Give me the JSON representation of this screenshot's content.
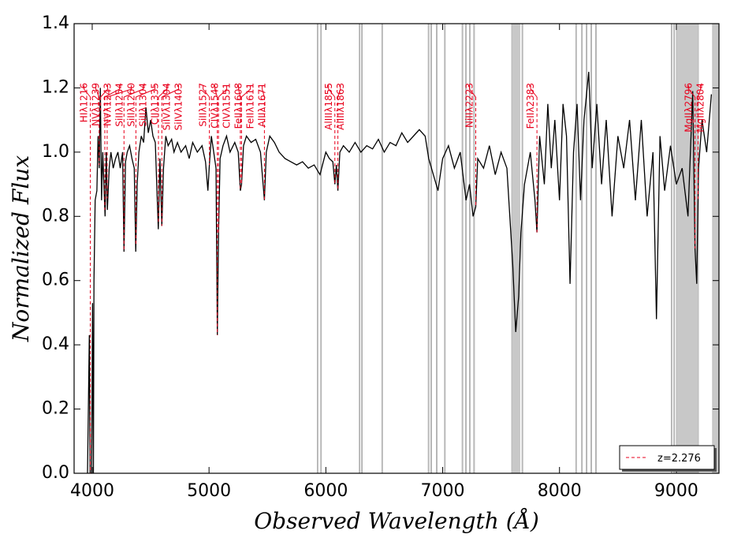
{
  "chart_data": {
    "type": "line",
    "xlabel": "Observed Wavelength (Å)",
    "ylabel": "Normalized Flux",
    "xlim": [
      3845,
      9365
    ],
    "ylim": [
      0,
      1.4
    ],
    "xticks": [
      4000,
      5000,
      6000,
      7000,
      8000,
      9000
    ],
    "yticks": [
      {
        "value": 0,
        "label": "0.0"
      },
      0.2,
      0.4,
      0.6,
      0.8,
      {
        "value": 1,
        "label": "1.0"
      },
      1.2,
      1.4
    ],
    "color": "#000000",
    "line_color": "#e8001c",
    "band_color": "#c8c8c8",
    "legend_label": "z=2.276",
    "legend": "lower right",
    "x": [
      3960,
      3975,
      3982,
      3995,
      4003,
      4010,
      4015,
      4025,
      4040,
      4050,
      4060,
      4070,
      4080,
      4090,
      4100,
      4110,
      4120,
      4130,
      4145,
      4160,
      4180,
      4200,
      4220,
      4240,
      4260,
      4272,
      4285,
      4300,
      4320,
      4340,
      4360,
      4373,
      4385,
      4400,
      4420,
      4440,
      4460,
      4480,
      4500,
      4520,
      4540,
      4566,
      4580,
      4596,
      4610,
      4630,
      4650,
      4680,
      4700,
      4730,
      4760,
      4800,
      4830,
      4860,
      4900,
      4940,
      4970,
      4990,
      5003,
      5020,
      5040,
      5060,
      5071,
      5081,
      5095,
      5120,
      5150,
      5180,
      5220,
      5250,
      5268,
      5278,
      5295,
      5320,
      5360,
      5400,
      5440,
      5474,
      5490,
      5520,
      5560,
      5600,
      5650,
      5700,
      5750,
      5800,
      5850,
      5900,
      5950,
      6000,
      6030,
      6060,
      6077,
      6090,
      6103,
      6120,
      6150,
      6200,
      6250,
      6300,
      6350,
      6400,
      6450,
      6500,
      6550,
      6600,
      6650,
      6700,
      6750,
      6800,
      6850,
      6880,
      6920,
      6960,
      7000,
      7050,
      7100,
      7150,
      7200,
      7230,
      7260,
      7283,
      7300,
      7350,
      7400,
      7450,
      7500,
      7550,
      7600,
      7625,
      7650,
      7670,
      7700,
      7750,
      7790,
      7807,
      7830,
      7870,
      7900,
      7930,
      7960,
      8000,
      8030,
      8060,
      8090,
      8120,
      8150,
      8180,
      8210,
      8250,
      8280,
      8320,
      8360,
      8400,
      8450,
      8500,
      8550,
      8600,
      8650,
      8700,
      8750,
      8800,
      8830,
      8860,
      8900,
      8950,
      9000,
      9050,
      9100,
      9140,
      9160,
      9175,
      9190,
      9220,
      9260,
      9300
    ],
    "values": [
      0.0,
      0.43,
      0.0,
      0.0,
      0.53,
      0.0,
      0.6,
      0.85,
      0.88,
      1.05,
      0.95,
      1.2,
      0.85,
      1.0,
      0.9,
      0.8,
      1.0,
      0.82,
      0.95,
      1.0,
      0.95,
      0.98,
      1.0,
      0.95,
      1.0,
      0.69,
      0.97,
      1.0,
      1.02,
      0.98,
      0.95,
      0.69,
      0.9,
      1.0,
      1.05,
      1.03,
      1.14,
      1.06,
      1.1,
      1.05,
      1.03,
      0.76,
      0.98,
      0.77,
      0.95,
      1.05,
      1.02,
      1.04,
      1.0,
      1.03,
      1.0,
      1.02,
      0.98,
      1.03,
      1.0,
      1.02,
      0.97,
      0.88,
      0.96,
      1.05,
      1.0,
      0.95,
      0.43,
      0.75,
      0.98,
      1.02,
      1.05,
      1.0,
      1.03,
      1.0,
      0.88,
      0.9,
      1.02,
      1.05,
      1.03,
      1.04,
      1.0,
      0.85,
      1.0,
      1.05,
      1.03,
      1.0,
      0.98,
      0.97,
      0.96,
      0.97,
      0.95,
      0.96,
      0.93,
      1.0,
      0.98,
      0.97,
      0.9,
      0.96,
      0.88,
      1.0,
      1.02,
      1.0,
      1.03,
      1.0,
      1.02,
      1.01,
      1.04,
      1.0,
      1.03,
      1.02,
      1.06,
      1.03,
      1.05,
      1.07,
      1.05,
      0.98,
      0.93,
      0.88,
      0.98,
      1.02,
      0.95,
      1.0,
      0.85,
      0.9,
      0.8,
      0.83,
      0.98,
      0.95,
      1.02,
      0.93,
      1.0,
      0.95,
      0.65,
      0.44,
      0.55,
      0.75,
      0.9,
      1.0,
      0.85,
      0.75,
      1.05,
      0.9,
      1.15,
      0.95,
      1.1,
      0.85,
      1.15,
      1.05,
      0.59,
      1.0,
      1.15,
      0.85,
      1.1,
      1.25,
      0.95,
      1.15,
      0.9,
      1.1,
      0.8,
      1.05,
      0.95,
      1.1,
      0.85,
      1.1,
      0.8,
      1.0,
      0.48,
      1.05,
      0.88,
      1.02,
      0.9,
      0.95,
      0.8,
      1.19,
      0.7,
      0.59,
      0.95,
      1.1,
      1.0,
      1.18
    ],
    "masked_regions": [
      [
        5925,
        5932
      ],
      [
        5955,
        5962
      ],
      [
        6285,
        6292
      ],
      [
        6305,
        6312
      ],
      [
        6478,
        6485
      ],
      [
        6875,
        6882
      ],
      [
        6898,
        6905
      ],
      [
        6945,
        6952
      ],
      [
        7015,
        7022
      ],
      [
        7165,
        7172
      ],
      [
        7195,
        7202
      ],
      [
        7228,
        7235
      ],
      [
        7265,
        7272
      ],
      [
        7590,
        7660
      ],
      [
        7678,
        7685
      ],
      [
        8138,
        8145
      ],
      [
        8188,
        8195
      ],
      [
        8228,
        8235
      ],
      [
        8268,
        8275
      ],
      [
        8308,
        8315
      ],
      [
        8955,
        8962
      ],
      [
        8978,
        8985
      ],
      [
        9000,
        9190
      ],
      [
        9310,
        9365
      ]
    ],
    "lines": [
      {
        "label": "HIλ1216",
        "x": 3984
      },
      {
        "label": "NVλ1239",
        "x": 4059
      },
      {
        "label": "NVλ1243",
        "x": 4072
      },
      {
        "label": "SiIIλ1254",
        "x": 4108
      },
      {
        "label": "SiIIλ1260",
        "x": 4128
      },
      {
        "label": "SiIIλ1304",
        "x": 4272
      },
      {
        "label": "CIIλ1335",
        "x": 4374
      },
      {
        "label": "SiIVλ1394",
        "x": 4567
      },
      {
        "label": "SiIVλ1403",
        "x": 4596
      },
      {
        "label": "SiIIλ1527",
        "x": 5003
      },
      {
        "label": "CIVλ1548",
        "x": 5071
      },
      {
        "label": "CIVλ1551",
        "x": 5081
      },
      {
        "label": "FeIIλ1608",
        "x": 5268
      },
      {
        "label": "FeIIλ1611",
        "x": 5278
      },
      {
        "label": "AlIIλ1671",
        "x": 5474
      },
      {
        "label": "AlIIIλ1855",
        "x": 6077
      },
      {
        "label": "AlIIIλ1863",
        "x": 6103
      },
      {
        "label": "NiIIλ2223",
        "x": 7283
      },
      {
        "label": "FeIIλ2383",
        "x": 7807
      },
      {
        "label": "MgIIλ2796",
        "x": 9160
      },
      {
        "label": "MgIIλ2804",
        "x": 9186
      }
    ]
  }
}
